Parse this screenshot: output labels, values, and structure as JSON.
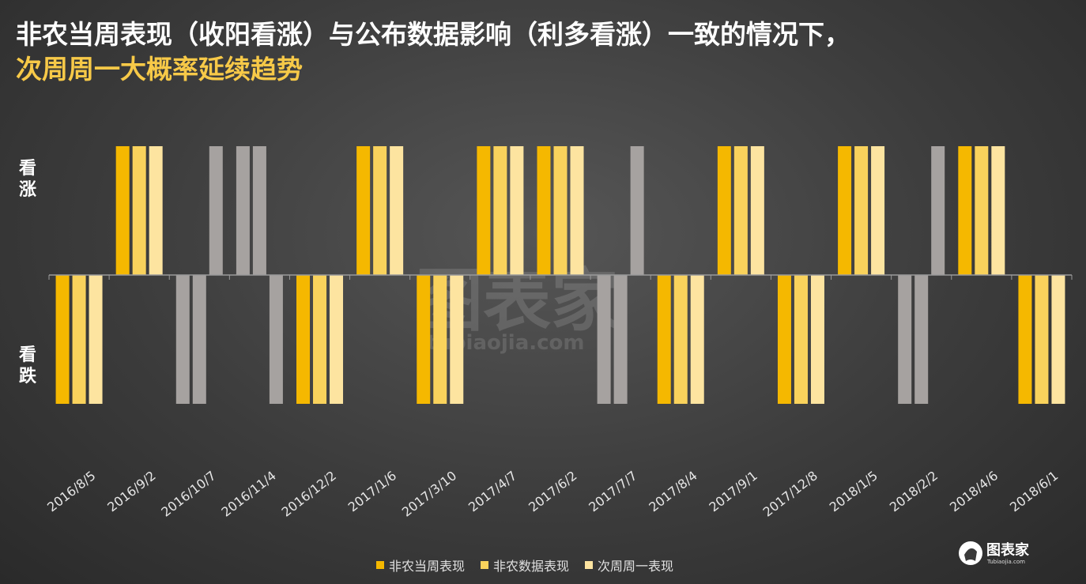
{
  "title_line1": "非农当周表现（收阳看涨）与公布数据影响（利多看涨）一致的情况下，",
  "title_line2": "次周周一大概率延续趋势",
  "y_up_label": "看涨",
  "y_down_label": "看跌",
  "watermark": "图表家",
  "watermark_sub": "tubiaojia.com",
  "logo_text": "图表家",
  "logo_sub": "Tubiaojia.com",
  "chart_data": {
    "type": "bar",
    "categories": [
      "2016/8/5",
      "2016/9/2",
      "2016/10/7",
      "2016/11/4",
      "2016/12/2",
      "2017/1/6",
      "2017/3/10",
      "2017/4/7",
      "2017/6/2",
      "2017/7/7",
      "2017/8/4",
      "2017/9/1",
      "2017/12/8",
      "2018/1/5",
      "2018/2/2",
      "2018/4/6",
      "2018/6/1"
    ],
    "series": [
      {
        "name": "非农当周表现",
        "values": [
          -1,
          1,
          -1,
          1,
          -1,
          1,
          -1,
          1,
          1,
          -1,
          -1,
          1,
          -1,
          1,
          -1,
          1,
          -1
        ]
      },
      {
        "name": "非农数据表现",
        "values": [
          -1,
          1,
          -1,
          1,
          -1,
          1,
          -1,
          1,
          1,
          -1,
          -1,
          1,
          -1,
          1,
          -1,
          1,
          -1
        ]
      },
      {
        "name": "次周周一表现",
        "values": [
          -1,
          1,
          1,
          -1,
          -1,
          1,
          -1,
          1,
          1,
          1,
          -1,
          1,
          -1,
          1,
          1,
          1,
          -1
        ]
      }
    ],
    "consistent": [
      true,
      true,
      false,
      false,
      true,
      true,
      true,
      true,
      true,
      false,
      true,
      true,
      true,
      true,
      false,
      true,
      true
    ],
    "ylim": [
      -1,
      1
    ],
    "colors": {
      "series": [
        "#f5b800",
        "#f9d25c",
        "#fde4a0"
      ],
      "inconsistent": "#a6a2a0",
      "axis": "#9a9a9a",
      "tick_label": "#e6e6e6"
    },
    "legend_position": "bottom"
  }
}
